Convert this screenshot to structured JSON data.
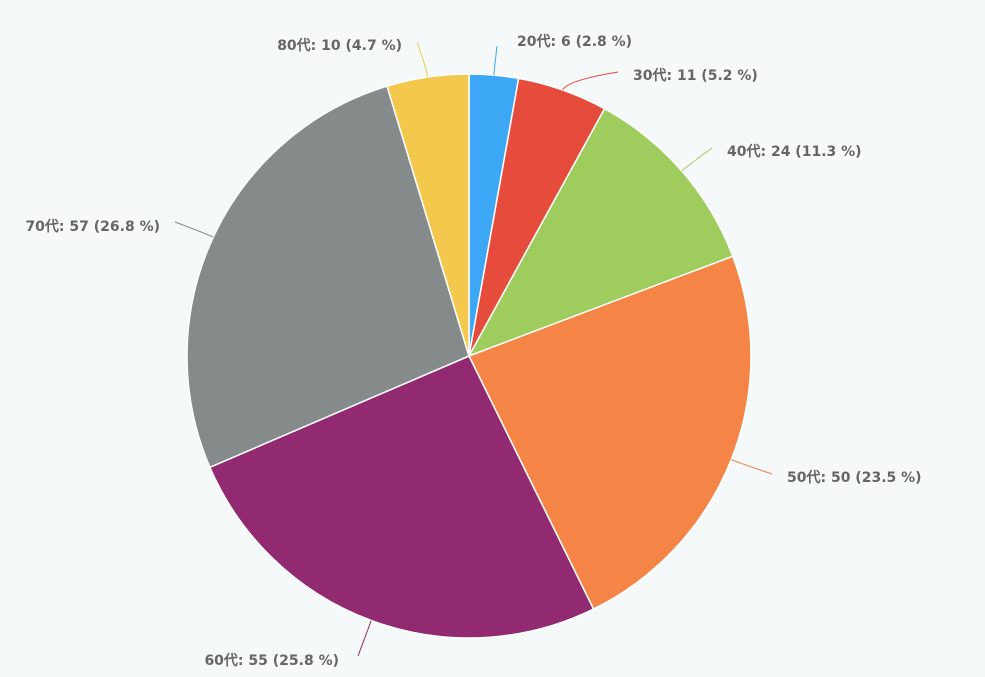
{
  "chart_data": {
    "type": "pie",
    "title": "",
    "start_angle_deg": 0,
    "direction": "clockwise",
    "slices": [
      {
        "label": "20代: 6 (2.8 %)",
        "category": "20代",
        "value": 6,
        "percent": 2.8,
        "color": "#3ba7f5"
      },
      {
        "label": "30代: 11 (5.2 %)",
        "category": "30代",
        "value": 11,
        "percent": 5.2,
        "color": "#e64c3b"
      },
      {
        "label": "40代: 24 (11.3 %)",
        "category": "40代",
        "value": 24,
        "percent": 11.3,
        "color": "#9ecd5e"
      },
      {
        "label": "50代: 50 (23.5 %)",
        "category": "50代",
        "value": 50,
        "percent": 23.5,
        "color": "#f58546"
      },
      {
        "label": "60代: 55 (25.8 %)",
        "category": "60代",
        "value": 55,
        "percent": 25.8,
        "color": "#922a71"
      },
      {
        "label": "70代: 57 (26.8 %)",
        "category": "70代",
        "value": 57,
        "percent": 26.8,
        "color": "#858b8b"
      },
      {
        "label": "80代: 10 (4.7 %)",
        "category": "80代",
        "value": 10,
        "percent": 4.7,
        "color": "#f4c84c"
      }
    ]
  }
}
